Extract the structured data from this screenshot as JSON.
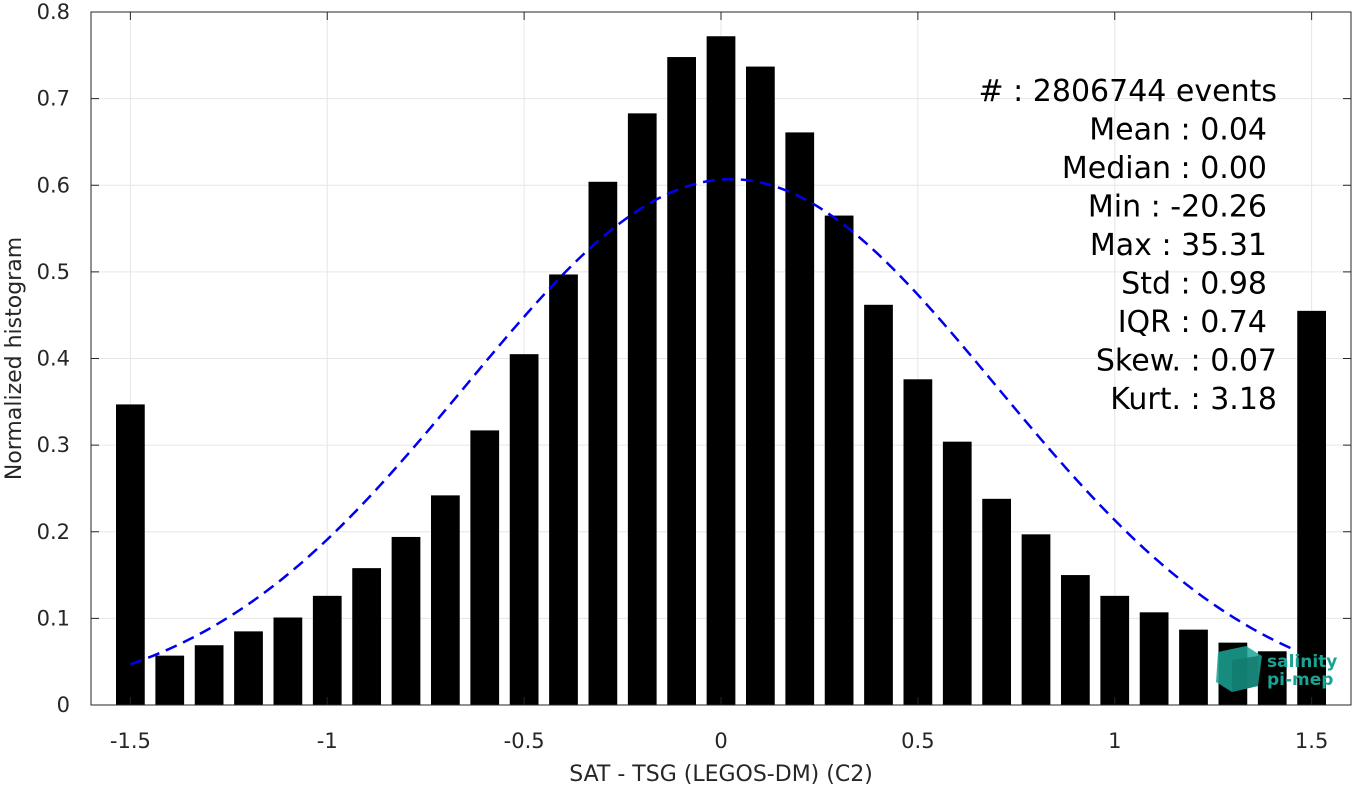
{
  "chart_data": {
    "type": "bar",
    "xlabel": "SAT - TSG (LEGOS-DM) (C2)",
    "ylabel": "Normalized histogram",
    "xlim": [
      -1.6,
      1.6
    ],
    "ylim": [
      0,
      0.8
    ],
    "xticks": [
      "-1.5",
      "-1",
      "-0.5",
      "0",
      "0.5",
      "1",
      "1.5"
    ],
    "yticks": [
      "0",
      "0.1",
      "0.2",
      "0.3",
      "0.4",
      "0.5",
      "0.6",
      "0.7",
      "0.8"
    ],
    "grid": true,
    "bar_color": "#000000",
    "fit_color": "#0000ee",
    "bins": [
      {
        "x": -1.5,
        "y": 0.347
      },
      {
        "x": -1.4,
        "y": 0.057
      },
      {
        "x": -1.3,
        "y": 0.069
      },
      {
        "x": -1.2,
        "y": 0.085
      },
      {
        "x": -1.1,
        "y": 0.101
      },
      {
        "x": -1.0,
        "y": 0.126
      },
      {
        "x": -0.9,
        "y": 0.158
      },
      {
        "x": -0.8,
        "y": 0.194
      },
      {
        "x": -0.7,
        "y": 0.242
      },
      {
        "x": -0.6,
        "y": 0.317
      },
      {
        "x": -0.5,
        "y": 0.405
      },
      {
        "x": -0.4,
        "y": 0.497
      },
      {
        "x": -0.3,
        "y": 0.604
      },
      {
        "x": -0.2,
        "y": 0.683
      },
      {
        "x": -0.1,
        "y": 0.748
      },
      {
        "x": 0.0,
        "y": 0.772
      },
      {
        "x": 0.1,
        "y": 0.737
      },
      {
        "x": 0.2,
        "y": 0.661
      },
      {
        "x": 0.3,
        "y": 0.565
      },
      {
        "x": 0.4,
        "y": 0.462
      },
      {
        "x": 0.5,
        "y": 0.376
      },
      {
        "x": 0.6,
        "y": 0.304
      },
      {
        "x": 0.7,
        "y": 0.238
      },
      {
        "x": 0.8,
        "y": 0.197
      },
      {
        "x": 0.9,
        "y": 0.15
      },
      {
        "x": 1.0,
        "y": 0.126
      },
      {
        "x": 1.1,
        "y": 0.107
      },
      {
        "x": 1.2,
        "y": 0.087
      },
      {
        "x": 1.3,
        "y": 0.072
      },
      {
        "x": 1.4,
        "y": 0.062
      },
      {
        "x": 1.5,
        "y": 0.455
      }
    ],
    "gaussian_fit": {
      "mean": 0.025,
      "peak": 0.607,
      "x_range": [
        -1.5,
        1.45
      ],
      "style": "dashed"
    },
    "stats": [
      "#  : 2806744 events",
      "Mean : 0.04",
      "Median : 0.00",
      "Min : -20.26",
      "Max : 35.31",
      "Std : 0.98",
      "IQR : 0.74",
      "Skew. : 0.07",
      "Kurt. : 3.18"
    ]
  },
  "logo": {
    "line1": "salinity",
    "line2": "pi-mep",
    "color": "#1aa394"
  }
}
